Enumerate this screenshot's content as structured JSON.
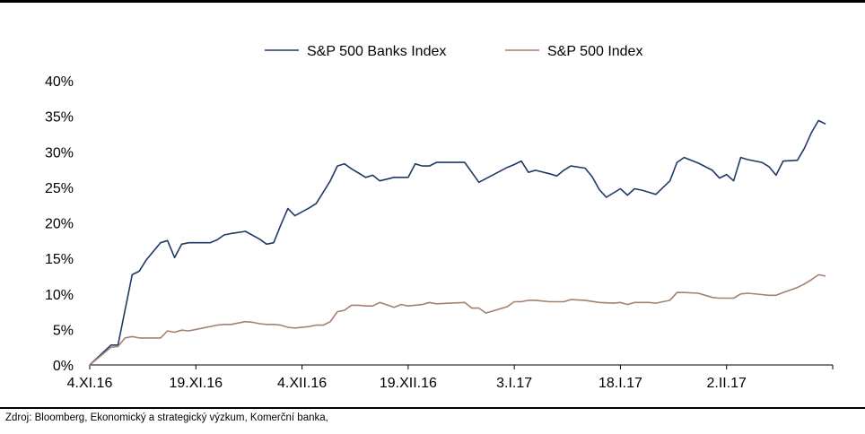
{
  "chart_data": {
    "type": "line",
    "title": "",
    "xlabel": "",
    "ylabel": "",
    "ylim": [
      0,
      40
    ],
    "y_ticks": [
      "0%",
      "5%",
      "10%",
      "15%",
      "20%",
      "25%",
      "30%",
      "35%",
      "40%"
    ],
    "x_tick_labels": [
      "4.XI.16",
      "19.XI.16",
      "4.XII.16",
      "19.XII.16",
      "3.I.17",
      "18.I.17",
      "2.II.17"
    ],
    "x_tick_positions": [
      0,
      15,
      30,
      45,
      60,
      75,
      90
    ],
    "xlim": [
      0,
      105
    ],
    "legend_position": "top-center",
    "grid": false,
    "series": [
      {
        "name": "S&P 500 Banks Index",
        "color": "#1f3a66",
        "x": [
          0,
          3,
          4,
          6,
          7,
          8,
          10,
          11,
          12,
          13,
          14,
          16,
          17,
          18,
          19,
          20,
          22,
          24,
          25,
          26,
          27,
          28,
          29,
          31,
          32,
          33,
          34,
          35,
          36,
          37,
          38,
          39,
          40,
          41,
          43,
          44,
          45,
          46,
          47,
          48,
          49,
          50,
          53,
          54,
          55,
          59,
          60,
          61,
          62,
          63,
          65,
          66,
          67,
          68,
          70,
          71,
          72,
          73,
          75,
          76,
          77,
          78,
          79,
          80,
          82,
          83,
          84,
          86,
          88,
          89,
          90,
          91,
          92,
          93,
          95,
          96,
          97,
          98,
          100,
          101,
          102,
          103,
          104
        ],
        "values": [
          0,
          2.8,
          2.8,
          12.7,
          13.2,
          14.8,
          17.2,
          17.5,
          15.1,
          17,
          17.2,
          17.2,
          17.2,
          17.6,
          18.3,
          18.5,
          18.8,
          17.7,
          17,
          17.2,
          19.7,
          22,
          21,
          22.1,
          22.7,
          24.3,
          25.9,
          28,
          28.3,
          27.6,
          27,
          26.4,
          26.7,
          25.9,
          26.4,
          26.4,
          26.4,
          28.3,
          28,
          28,
          28.5,
          28.5,
          28.5,
          27.1,
          25.7,
          27.8,
          28.2,
          28.7,
          27.1,
          27.4,
          26.9,
          26.6,
          27.4,
          28,
          27.7,
          26.5,
          24.7,
          23.6,
          24.8,
          23.9,
          24.8,
          24.6,
          24.3,
          24,
          25.9,
          28.5,
          29.2,
          28.4,
          27.4,
          26.3,
          26.8,
          25.9,
          29.2,
          28.9,
          28.5,
          27.9,
          26.7,
          28.7,
          28.8,
          30.5,
          32.7,
          34.4,
          33.9
        ]
      },
      {
        "name": "S&P 500 Index",
        "color": "#a58070",
        "x": [
          0,
          3,
          4,
          5,
          6,
          7,
          8,
          9,
          10,
          11,
          12,
          13,
          14,
          16,
          18,
          19,
          20,
          21,
          22,
          23,
          24,
          25,
          26,
          27,
          28,
          29,
          31,
          32,
          33,
          34,
          35,
          36,
          37,
          38,
          39,
          40,
          41,
          43,
          44,
          45,
          46,
          47,
          48,
          49,
          53,
          54,
          55,
          56,
          59,
          60,
          61,
          62,
          63,
          65,
          66,
          67,
          68,
          70,
          72,
          74,
          75,
          76,
          77,
          78,
          79,
          80,
          82,
          83,
          84,
          86,
          88,
          89,
          90,
          91,
          92,
          93,
          95,
          96,
          97,
          98,
          100,
          101,
          102,
          103,
          104
        ],
        "values": [
          0,
          2.5,
          2.6,
          3.8,
          4,
          3.8,
          3.8,
          3.8,
          3.8,
          4.8,
          4.6,
          4.9,
          4.8,
          5.2,
          5.6,
          5.7,
          5.7,
          5.9,
          6.1,
          6,
          5.8,
          5.7,
          5.7,
          5.6,
          5.3,
          5.2,
          5.4,
          5.6,
          5.6,
          6.1,
          7.5,
          7.7,
          8.4,
          8.4,
          8.3,
          8.3,
          8.8,
          8.1,
          8.5,
          8.3,
          8.4,
          8.5,
          8.8,
          8.6,
          8.8,
          8,
          8,
          7.3,
          8.2,
          8.9,
          8.9,
          9.1,
          9.1,
          8.9,
          8.9,
          8.9,
          9.2,
          9.1,
          8.8,
          8.7,
          8.8,
          8.5,
          8.8,
          8.8,
          8.8,
          8.7,
          9.1,
          10.2,
          10.2,
          10.1,
          9.5,
          9.4,
          9.4,
          9.4,
          10,
          10.1,
          9.9,
          9.8,
          9.8,
          10.2,
          10.9,
          11.4,
          12,
          12.7,
          12.5
        ]
      }
    ]
  },
  "source_text": "Zdroj: Bloomberg, Ekonomický a strategický výzkum, Komerční banka,"
}
